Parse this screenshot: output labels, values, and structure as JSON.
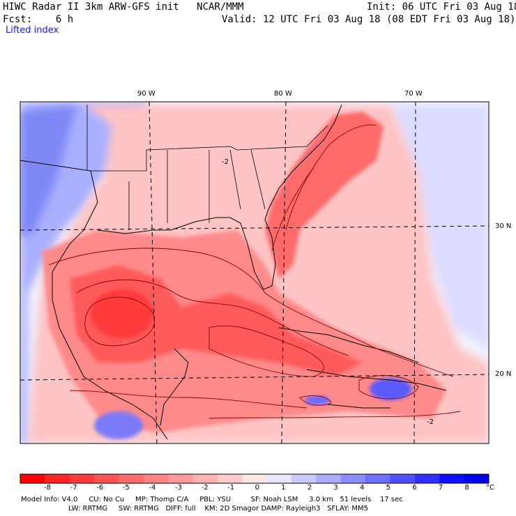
{
  "header": {
    "title": "HIWC Radar II 3km ARW-GFS init   NCAR/MMM",
    "init": "Init: 06 UTC Fri 03 Aug 18",
    "fcst": "Fcst:    6 h",
    "valid": "Valid: 12 UTC Fri 03 Aug 18 (08 EDT Fri 03 Aug 18)",
    "field": "Lifted index"
  },
  "map": {
    "lon_labels": [
      "90 W",
      "80 W",
      "70 W"
    ],
    "lat_labels": [
      "30 N",
      "20 N"
    ],
    "contour_labels": [
      "-2",
      "-2"
    ]
  },
  "colorbar": {
    "ticks": [
      "-8",
      "-7",
      "-6",
      "-5",
      "-4",
      "-3",
      "-2",
      "-1",
      "0",
      "1",
      "2",
      "3",
      "4",
      "5",
      "6",
      "7",
      "8"
    ],
    "unit": "°C",
    "colors": [
      "#ff0000",
      "#ff2424",
      "#ff3b3b",
      "#ff5454",
      "#ff6c6c",
      "#ff8484",
      "#ff9b9b",
      "#ffb4b4",
      "#ffcaca",
      "#ffe6e6",
      "#e6e6ff",
      "#c8c8ff",
      "#aaaaff",
      "#8c8cff",
      "#6e6eff",
      "#4f4fff",
      "#2f2fff",
      "#0f0fff",
      "#0000e6"
    ]
  },
  "footer": {
    "line1": "Model Info: V4.0     CU: No Cu     MP: Thomp C/A     PBL: YSU         SF: Noah LSM     3.0 km   51 levels    17 sec",
    "line2": "LW: RRTMG     SW: RRTMG   DIFF: full    KM: 2D Smagor DAMP: Rayleigh3   SFLAY: MM5"
  }
}
